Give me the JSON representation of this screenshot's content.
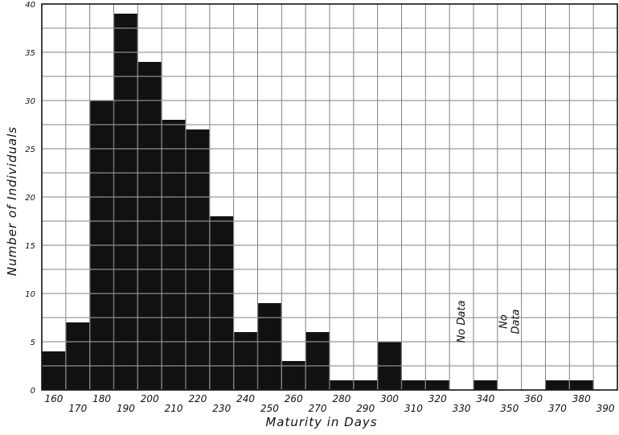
{
  "chart_data": {
    "type": "bar",
    "title": "",
    "xlabel": "Maturity in Days",
    "ylabel": "Number of Individuals",
    "categories": [
      160,
      170,
      180,
      190,
      200,
      210,
      220,
      230,
      240,
      250,
      260,
      270,
      280,
      290,
      300,
      310,
      320,
      330,
      340,
      350,
      360,
      370,
      380
    ],
    "values": [
      4,
      7,
      30,
      39,
      34,
      28,
      27,
      18,
      6,
      9,
      3,
      6,
      1,
      1,
      5,
      1,
      1,
      0,
      1,
      0,
      0,
      1,
      1
    ],
    "x_tick_labels": [
      "160",
      "170",
      "180",
      "190",
      "200",
      "210",
      "220",
      "230",
      "240",
      "250",
      "260",
      "270",
      "280",
      "290",
      "300",
      "310",
      "320",
      "330",
      "340",
      "350",
      "360",
      "370",
      "380",
      "390"
    ],
    "y_ticks": [
      0,
      5,
      10,
      15,
      20,
      25,
      30,
      35,
      40
    ],
    "ylim": [
      0,
      40
    ],
    "grid": true,
    "bar_color": "#111111",
    "grid_color": "#1a1a1a",
    "annotations": [
      {
        "text": "No Data",
        "category": 330,
        "lines": [
          "No Data"
        ]
      },
      {
        "text": "No Data",
        "category": 350,
        "lines": [
          "No",
          "Data"
        ]
      }
    ]
  }
}
